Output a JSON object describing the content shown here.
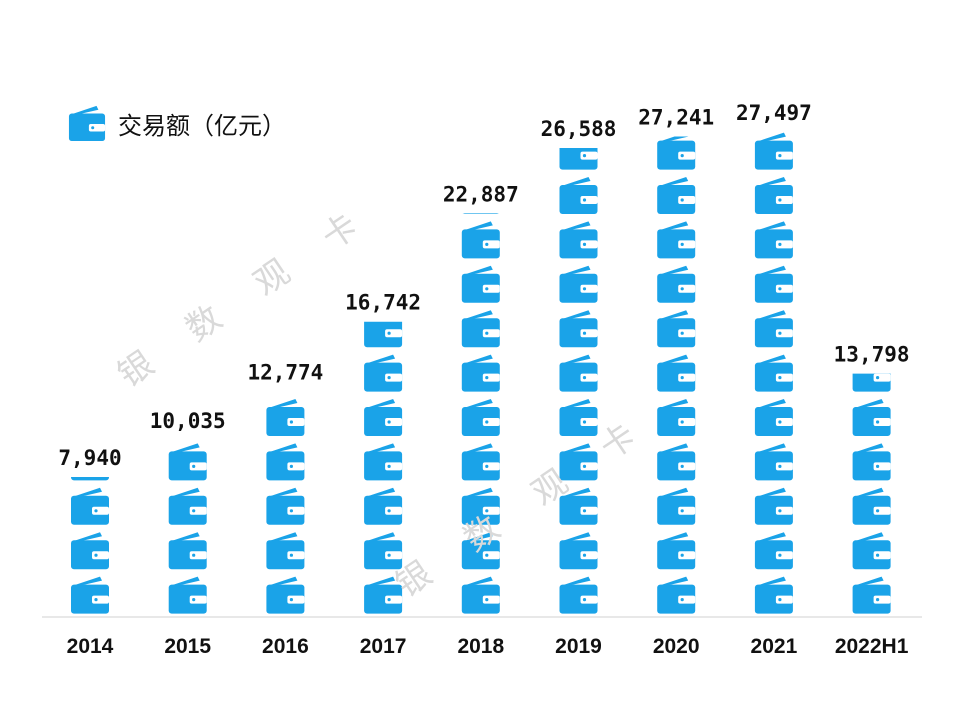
{
  "legend": {
    "label": "交易额（亿元）",
    "icon": "wallet-icon"
  },
  "watermark": "银数观卡",
  "colors": {
    "icon": "#1aa3e8",
    "icon_dark": "#0b7fc0",
    "text": "#111111",
    "axis": "#d0d0d0",
    "watermark": "#d9d9d9"
  },
  "chart_data": {
    "type": "bar",
    "style": "pictograph",
    "categories": [
      "2014",
      "2015",
      "2016",
      "2017",
      "2018",
      "2019",
      "2020",
      "2021",
      "2022H1"
    ],
    "values": [
      7940,
      10035,
      12774,
      16742,
      22887,
      26588,
      27241,
      27497,
      13798
    ],
    "value_labels": [
      "7,940",
      "10,035",
      "12,774",
      "16,742",
      "22,887",
      "26,588",
      "27,241",
      "27,497",
      "13,798"
    ],
    "title": "",
    "xlabel": "",
    "ylabel": "",
    "ylim": [
      0,
      27497
    ],
    "grid": false,
    "legend_position": "top-left"
  }
}
